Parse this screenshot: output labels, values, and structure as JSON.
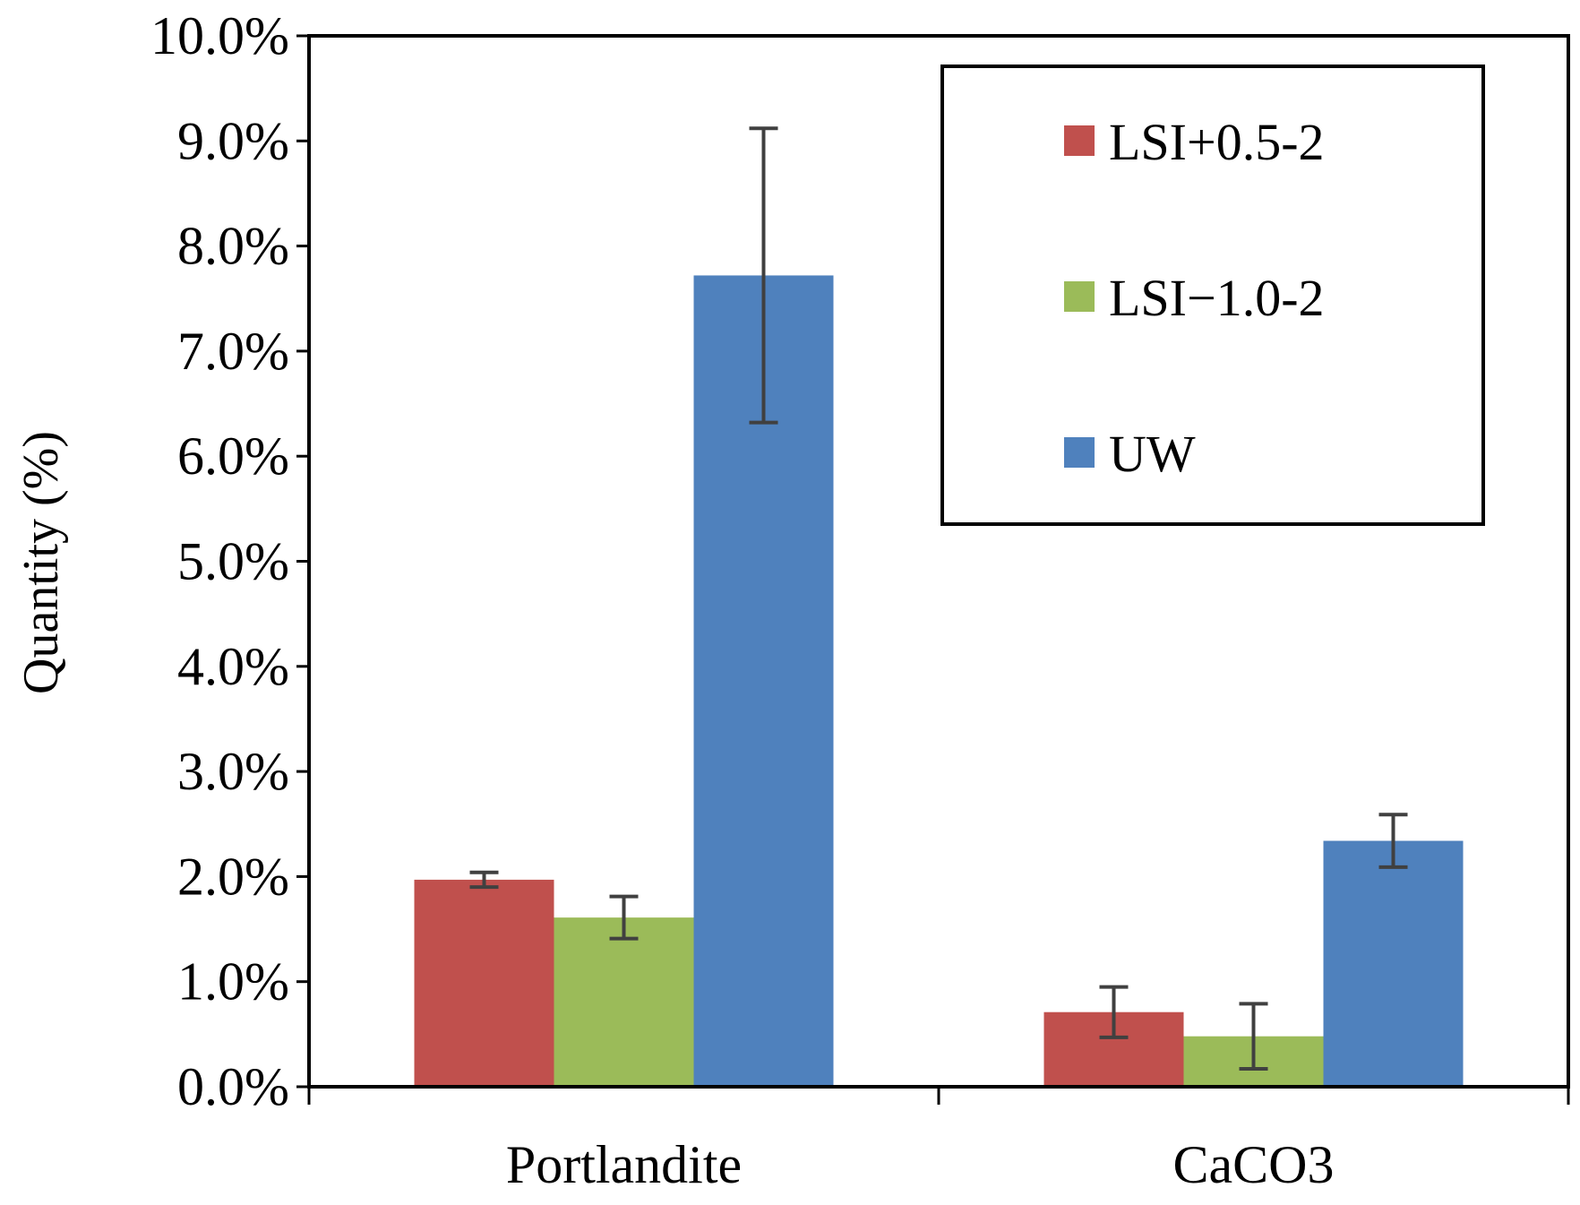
{
  "chart_data": {
    "type": "bar",
    "title": "",
    "xlabel": "",
    "ylabel": "Quantity (%)",
    "ylim": [
      0,
      10
    ],
    "ytick_values": [
      0,
      1,
      2,
      3,
      4,
      5,
      6,
      7,
      8,
      9,
      10
    ],
    "ytick_labels": [
      "0.0%",
      "1.0%",
      "2.0%",
      "3.0%",
      "4.0%",
      "5.0%",
      "6.0%",
      "7.0%",
      "8.0%",
      "9.0%",
      "10.0%"
    ],
    "categories": [
      "Portlandite",
      "CaCO3"
    ],
    "series": [
      {
        "name": "LSI+0.5-2",
        "color": "#c0504d",
        "values": [
          1.97,
          0.71
        ],
        "errors": [
          0.07,
          0.24
        ]
      },
      {
        "name": "LSI−1.0-2",
        "color": "#9bbb59",
        "values": [
          1.61,
          0.48
        ],
        "errors": [
          0.2,
          0.31
        ]
      },
      {
        "name": "UW",
        "color": "#4f81bd",
        "values": [
          7.72,
          2.34
        ],
        "errors": [
          1.4,
          0.25
        ]
      }
    ],
    "legend_position": "top-right",
    "grid": false
  }
}
